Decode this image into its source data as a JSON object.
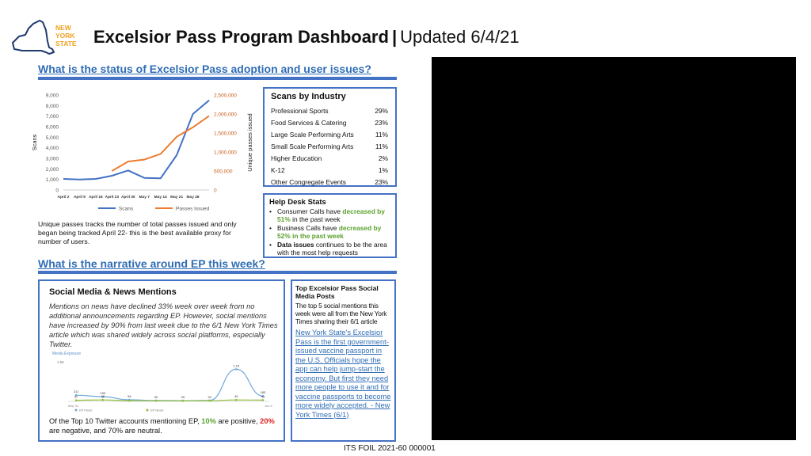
{
  "header": {
    "logo_lines": [
      "NEW",
      "YORK",
      "STATE"
    ],
    "title": "Excelsior Pass Program Dashboard",
    "separator": "|",
    "subtitle": "Updated 6/4/21"
  },
  "section1": {
    "heading": "What is the status of Excelsior Pass adoption and user issues?"
  },
  "section2": {
    "heading": "What is the narrative around EP this week?"
  },
  "chart_data": [
    {
      "type": "line",
      "x": [
        "April 2",
        "April 9",
        "April 16",
        "April 23",
        "April 30",
        "May 7",
        "May 14",
        "May 21",
        "May 28",
        "Jun 4"
      ],
      "xlabel": "",
      "ylabel": "Scans",
      "y2label": "Unique passes issued",
      "ylim": [
        0,
        9000
      ],
      "y2lim": [
        0,
        2500000
      ],
      "yticks": [
        "0",
        "1,000",
        "2,000",
        "3,000",
        "4,000",
        "5,000",
        "6,000",
        "7,000",
        "8,000",
        "9,000"
      ],
      "y2ticks": [
        "0",
        "500,000",
        "1,000,000",
        "1,500,000",
        "2,000,000",
        "2,500,000"
      ],
      "series": [
        {
          "name": "Scans",
          "axis": "left",
          "color": "#4472c4",
          "values": [
            1050,
            1000,
            1050,
            1350,
            1850,
            1150,
            1100,
            3300,
            7200,
            8500
          ]
        },
        {
          "name": "Passes Issued",
          "axis": "right",
          "color": "#ed7d31",
          "values": [
            null,
            null,
            null,
            500000,
            750000,
            800000,
            950000,
            1400000,
            1650000,
            1950000
          ]
        }
      ],
      "legend": "bottom",
      "grid": false
    },
    {
      "type": "line",
      "title": "Media Exposure",
      "ylim": [
        0,
        1300
      ],
      "ytick_top": "1.5K",
      "x_start_label": "May 31",
      "x_end_label": "Jun 5",
      "series": [
        {
          "name": "EP Posts",
          "color": "#6fa8dc",
          "values": [
            211,
            159,
            54,
            30,
            25,
            33,
            1100,
            183
          ],
          "labels": [
            "211",
            "159",
            "54",
            "30",
            "25",
            "33",
            "1.1K",
            "183"
          ]
        },
        {
          "name": "EP News",
          "color": "#8fbc3a",
          "values": [
            37,
            48,
            25,
            20,
            18,
            22,
            49,
            44
          ],
          "labels": [
            "37",
            "48",
            "",
            "",
            "",
            "",
            "49",
            "44"
          ]
        }
      ],
      "legend_items": [
        "EP Posts",
        "EP News"
      ]
    }
  ],
  "industry": {
    "title": "Scans by Industry",
    "rows": [
      {
        "name": "Professional Sports",
        "pct": "29%"
      },
      {
        "name": "Food Services & Catering",
        "pct": "23%"
      },
      {
        "name": "Large Scale Performing Arts",
        "pct": "11%"
      },
      {
        "name": "Small Scale Performing Arts",
        "pct": "11%"
      },
      {
        "name": "Higher Education",
        "pct": "2%"
      },
      {
        "name": "K-12",
        "pct": "1%"
      },
      {
        "name": "Other Congregate Events",
        "pct": "23%"
      }
    ]
  },
  "helpdesk": {
    "title": "Help Desk Stats",
    "item1_pre": "Consumer Calls have ",
    "item1_hl": "decreased by 51%",
    "item1_post": " in the past week",
    "item2_pre": "Business Calls have ",
    "item2_hl": "decreased by 52% in the past week",
    "item3_bold": "Data issues",
    "item3_post": " continues to be the area with the most help requests"
  },
  "caption": "Unique passes tracks the number of total passes issued and only began being tracked April 22- this is the best available proxy for number of users.",
  "social": {
    "title": "Social Media & News Mentions",
    "body": "Mentions on news have declined 33% week over week from no additional announcements regarding EP. However, social mentions have increased by 90% from last week due to the 6/1 New York Times article which was shared widely across social platforms, especially Twitter.",
    "foot_pre": "Of the Top 10 Twitter accounts mentioning EP, ",
    "foot_pos": "10%",
    "foot_mid": " are positive, ",
    "foot_neg": "20%",
    "foot_post": " are negative, and 70% are neutral."
  },
  "toppost": {
    "title": "Top Excelsior Pass Social Media Posts",
    "body": "The top 5 social mentions this week were all from the New York Times sharing their 6/1 article",
    "link": "New York State's Excelsior Pass is the first government-issued vaccine passport in the U.S. Officials hope the app can help jump-start the economy. But first they need more people to use it and for vaccine passports to become more widely accepted. - New York Times (6/1)"
  },
  "footer": "ITS FOIL 2021-60 000001"
}
